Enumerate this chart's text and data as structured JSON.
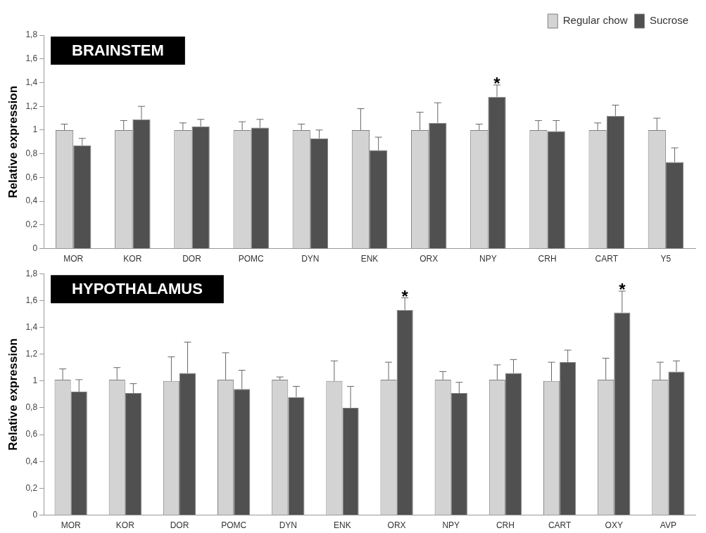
{
  "chart_data": [
    {
      "type": "bar",
      "title": "BRAINSTEM",
      "ylabel": "Relative expression",
      "categories": [
        "MOR",
        "KOR",
        "DOR",
        "POMC",
        "DYN",
        "ENK",
        "ORX",
        "NPY",
        "CRH",
        "CART",
        "Y5"
      ],
      "series": [
        {
          "name": "Regular chow",
          "color": "#d3d3d3",
          "values": [
            1.0,
            1.0,
            1.0,
            1.0,
            1.0,
            1.0,
            1.0,
            1.0,
            1.0,
            1.0,
            1.0
          ],
          "errors": [
            [
              1.0,
              1.05
            ],
            [
              1.0,
              1.08
            ],
            [
              1.0,
              1.06
            ],
            [
              1.0,
              1.07
            ],
            [
              1.0,
              1.05
            ],
            [
              1.0,
              1.18
            ],
            [
              1.0,
              1.15
            ],
            [
              1.0,
              1.05
            ],
            [
              1.0,
              1.08
            ],
            [
              1.0,
              1.06
            ],
            [
              1.0,
              1.1
            ]
          ]
        },
        {
          "name": "Sucrose",
          "color": "#505050",
          "values": [
            0.87,
            1.09,
            1.03,
            1.02,
            0.93,
            0.83,
            1.06,
            1.28,
            0.99,
            1.12,
            0.73
          ],
          "errors": [
            [
              0.87,
              0.93
            ],
            [
              1.09,
              1.2
            ],
            [
              1.03,
              1.09
            ],
            [
              1.02,
              1.09
            ],
            [
              0.93,
              1.0
            ],
            [
              0.83,
              0.94
            ],
            [
              1.06,
              1.23
            ],
            [
              1.28,
              1.38
            ],
            [
              0.99,
              1.08
            ],
            [
              1.12,
              1.21
            ],
            [
              0.73,
              0.85
            ]
          ]
        }
      ],
      "ylim": [
        0,
        1.8
      ],
      "yticks": [
        {
          "value": 0,
          "label": "0"
        },
        {
          "value": 0.2,
          "label": "0,2"
        },
        {
          "value": 0.4,
          "label": "0,4"
        },
        {
          "value": 0.6,
          "label": "0,6"
        },
        {
          "value": 0.8,
          "label": "0,8"
        },
        {
          "value": 1,
          "label": "1"
        },
        {
          "value": 1.2,
          "label": "1,2"
        },
        {
          "value": 1.4,
          "label": "1,4"
        },
        {
          "value": 1.6,
          "label": "1,6"
        },
        {
          "value": 1.8,
          "label": "1,8"
        }
      ],
      "annotations": [
        {
          "text": "*",
          "x": "NPY",
          "y": 1.28
        }
      ],
      "grid": false,
      "legend": "top right"
    },
    {
      "type": "bar",
      "title": "HYPOTHALAMUS",
      "ylabel": "Relative expression",
      "categories": [
        "MOR",
        "KOR",
        "DOR",
        "POMC",
        "DYN",
        "ENK",
        "ORX",
        "NPY",
        "CRH",
        "CART",
        "OXY",
        "AVP"
      ],
      "series": [
        {
          "color": "#d3d3d3",
          "values": [
            1.01,
            1.01,
            1.0,
            1.01,
            1.01,
            1.0,
            1.01,
            1.01,
            1.01,
            1.0,
            1.01,
            1.01
          ],
          "errors": [
            [
              1.01,
              1.09
            ],
            [
              1.01,
              1.1
            ],
            [
              1.0,
              1.18
            ],
            [
              1.01,
              1.21
            ],
            [
              1.01,
              1.03
            ],
            [
              1.0,
              1.15
            ],
            [
              1.01,
              1.14
            ],
            [
              1.01,
              1.07
            ],
            [
              1.01,
              1.12
            ],
            [
              1.0,
              1.14
            ],
            [
              1.01,
              1.17
            ],
            [
              1.01,
              1.14
            ]
          ]
        },
        {
          "color": "#505050",
          "values": [
            0.92,
            0.91,
            1.06,
            0.94,
            0.88,
            0.8,
            1.53,
            0.91,
            1.06,
            1.14,
            1.51,
            1.07
          ],
          "errors": [
            [
              0.92,
              1.01
            ],
            [
              0.91,
              0.98
            ],
            [
              1.06,
              1.29
            ],
            [
              0.94,
              1.08
            ],
            [
              0.88,
              0.96
            ],
            [
              0.8,
              0.96
            ],
            [
              1.53,
              1.62
            ],
            [
              0.91,
              0.99
            ],
            [
              1.06,
              1.16
            ],
            [
              1.14,
              1.23
            ],
            [
              1.51,
              1.67
            ],
            [
              1.07,
              1.15
            ]
          ]
        }
      ],
      "ylim": [
        0,
        1.8
      ],
      "yticks": [
        {
          "value": 0,
          "label": "0"
        },
        {
          "value": 0.2,
          "label": "0,2"
        },
        {
          "value": 0.4,
          "label": "0,4"
        },
        {
          "value": 0.6,
          "label": "0,6"
        },
        {
          "value": 0.8,
          "label": "0,8"
        },
        {
          "value": 1,
          "label": "1"
        },
        {
          "value": 1.2,
          "label": "1,2"
        },
        {
          "value": 1.4,
          "label": "1,4"
        },
        {
          "value": 1.6,
          "label": "1,6"
        },
        {
          "value": 1.8,
          "label": "1,8"
        }
      ],
      "annotations": [
        {
          "text": "*",
          "x": "ORX",
          "y": 1.53
        },
        {
          "text": "*",
          "x": "OXY",
          "y": 1.51
        }
      ],
      "grid": false,
      "legend": false
    }
  ]
}
